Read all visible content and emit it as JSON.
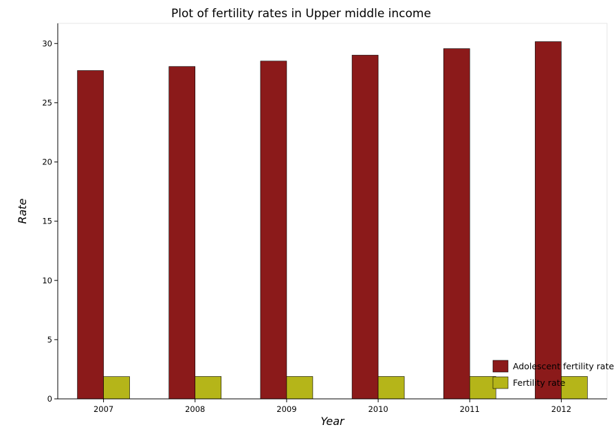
{
  "chart_data": {
    "type": "bar",
    "title": "Plot of fertility rates in Upper middle income",
    "xlabel": "Year",
    "ylabel": "Rate",
    "categories": [
      "2007",
      "2008",
      "2009",
      "2010",
      "2011",
      "2012"
    ],
    "series": [
      {
        "name": "Adolescent fertility rate",
        "color": "#8b1a1a",
        "values": [
          27.72,
          28.06,
          28.52,
          29.02,
          29.57,
          30.16
        ]
      },
      {
        "name": "Fertility rate",
        "color": "#b5b519",
        "values": [
          1.88,
          1.89,
          1.89,
          1.89,
          1.89,
          1.89
        ]
      }
    ],
    "ylim": [
      0,
      31.7
    ],
    "yticks": [
      0,
      5,
      10,
      15,
      20,
      25,
      30
    ],
    "grid": false,
    "legend_position": "bottom-right"
  }
}
